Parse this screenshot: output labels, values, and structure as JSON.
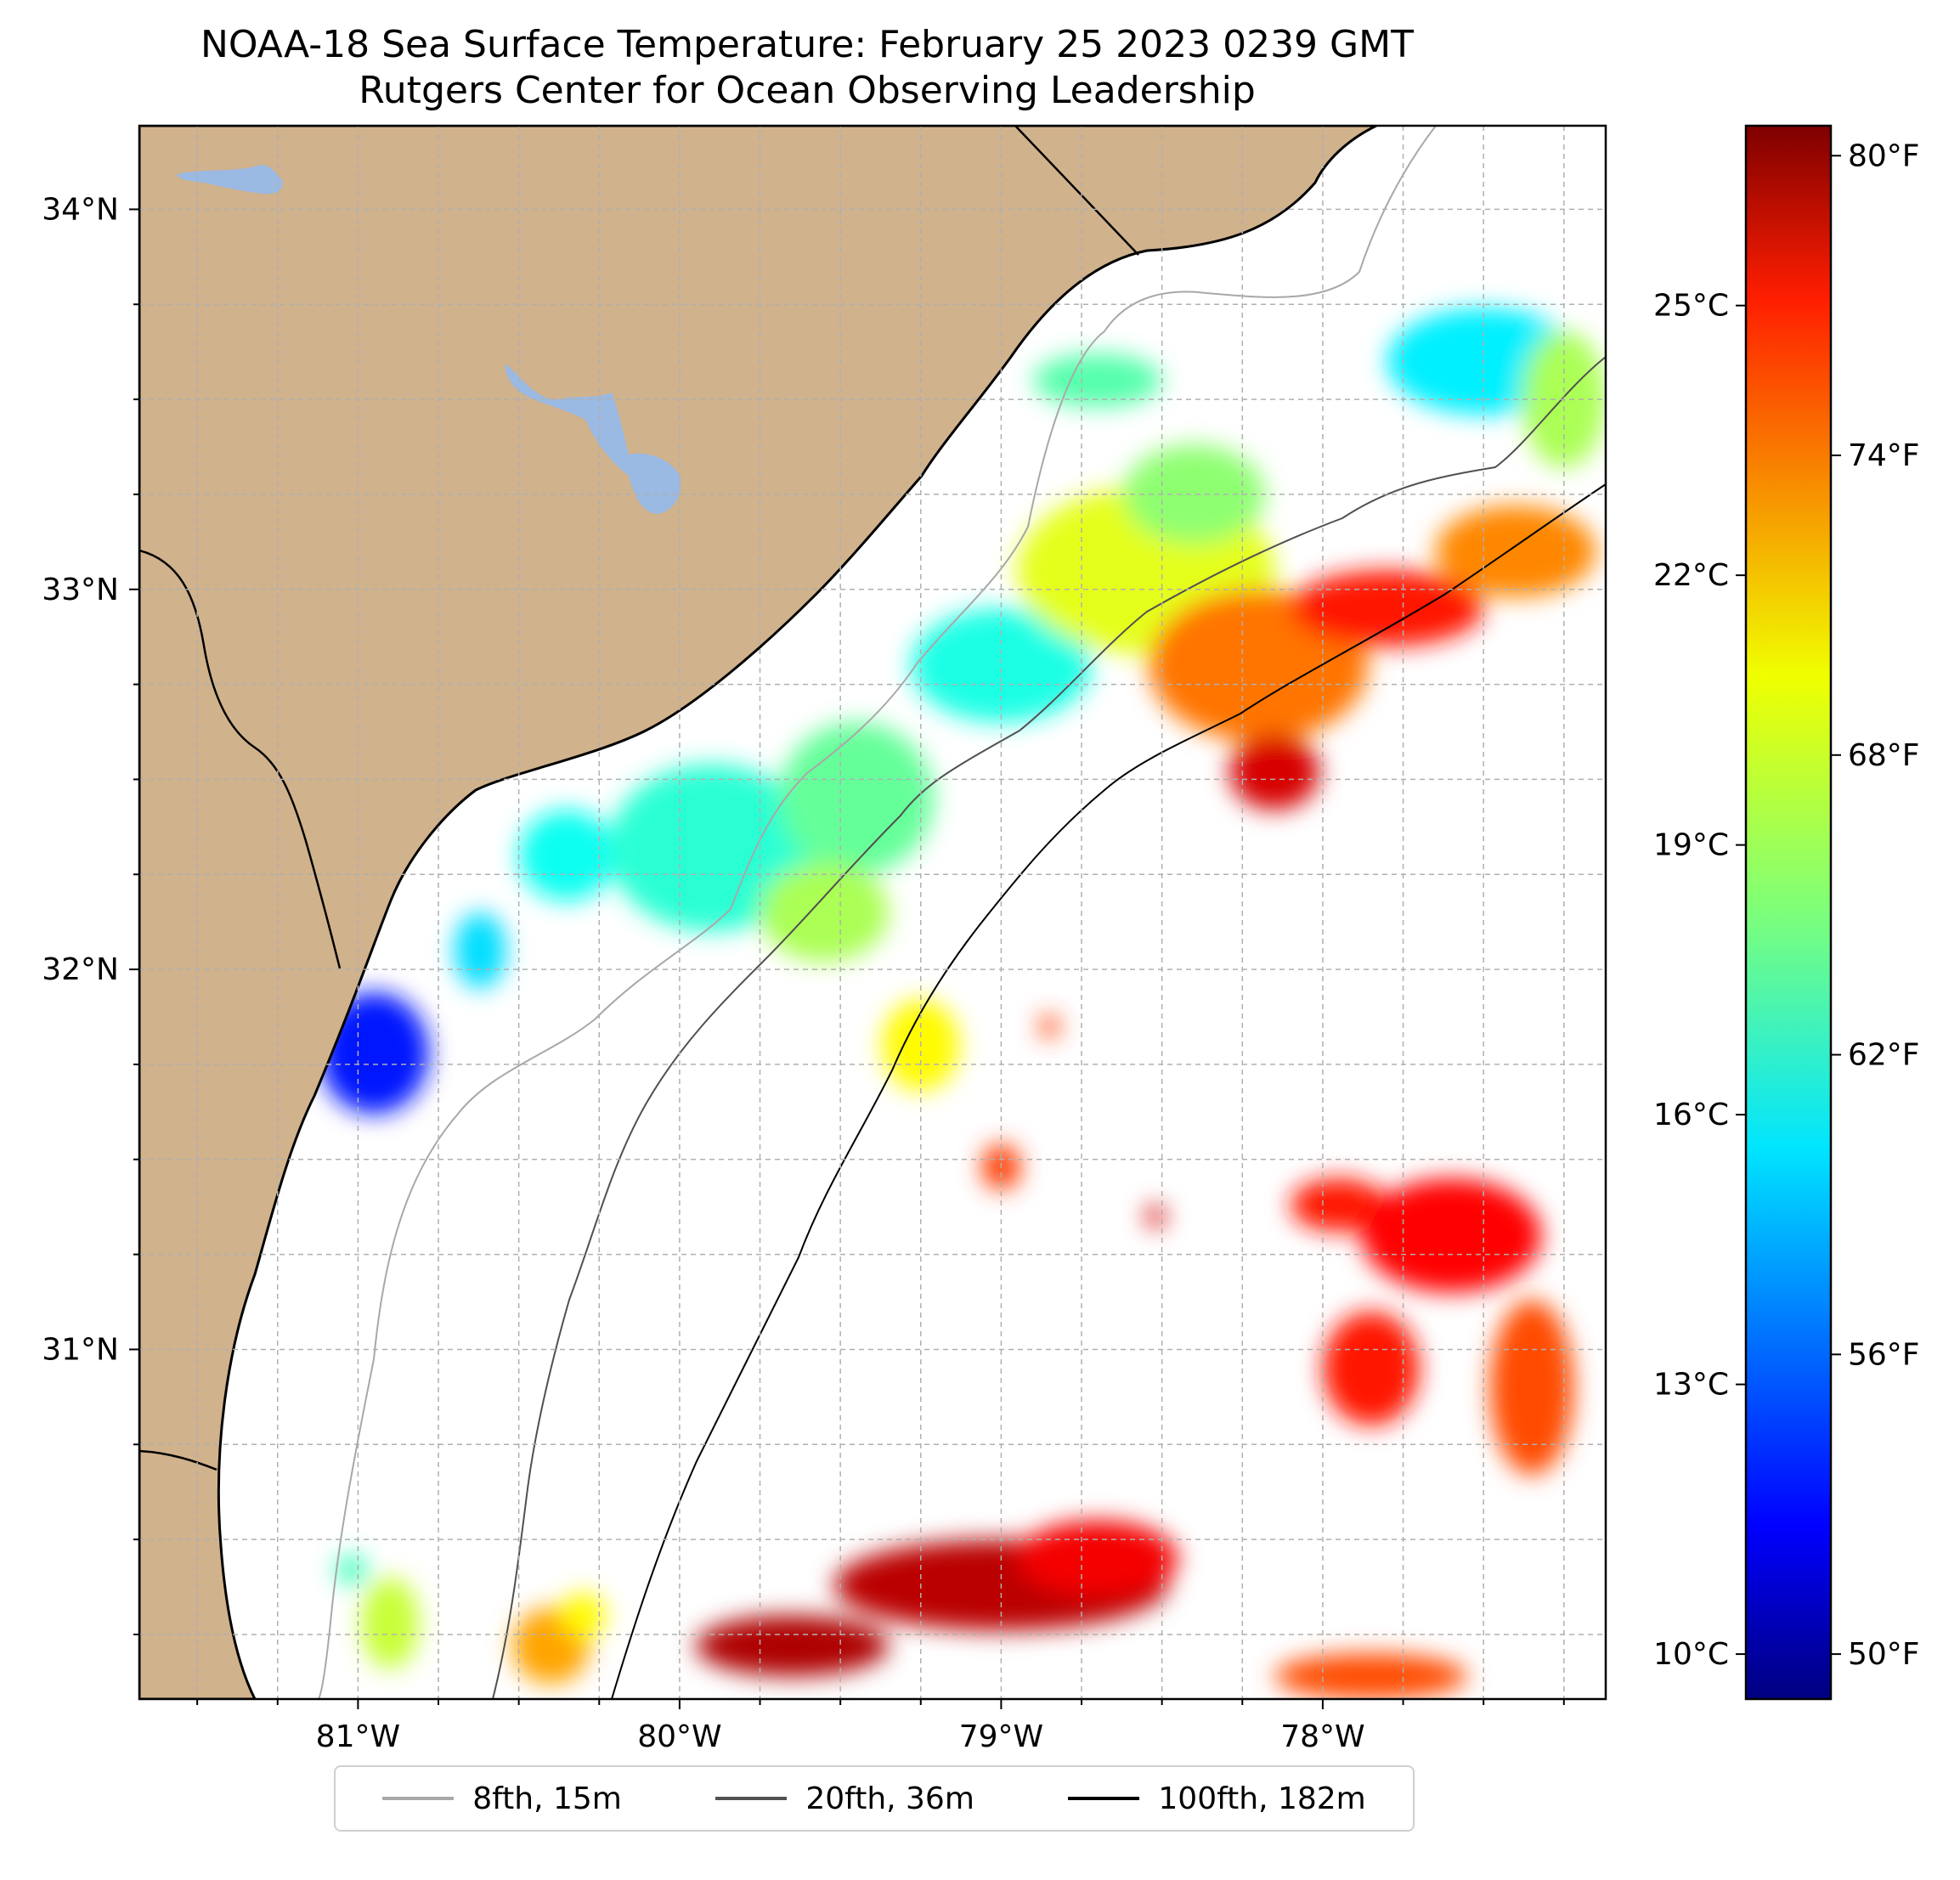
{
  "title_line1": "NOAA-18 Sea Surface Temperature: February 25 2023 0239 GMT",
  "title_line2": "Rutgers Center for Ocean Observing Leadership",
  "colors": {
    "land": "#d0b28c",
    "lake": "#9ab9e3",
    "coast": "#000000",
    "contour_8fth": "#a8a8a8",
    "contour_20fth": "#505050",
    "contour_100fth": "#000000",
    "grid": "#b0b0b0"
  },
  "map": {
    "lon_range": [
      -81.68,
      -77.12
    ],
    "lat_range": [
      30.08,
      34.22
    ],
    "lat_ticks": [
      {
        "value": 34,
        "label": "34°N"
      },
      {
        "value": 33,
        "label": "33°N"
      },
      {
        "value": 32,
        "label": "32°N"
      },
      {
        "value": 31,
        "label": "31°N"
      }
    ],
    "lon_ticks": [
      {
        "value": -81,
        "label": "81°W"
      },
      {
        "value": -80,
        "label": "80°W"
      },
      {
        "value": -79,
        "label": "79°W"
      },
      {
        "value": -78,
        "label": "78°W"
      }
    ]
  },
  "colorbar": {
    "colormap": "jet",
    "range_c": [
      9.5,
      27.0
    ],
    "celsius_ticks": [
      {
        "value": 25,
        "label": "25°C"
      },
      {
        "value": 22,
        "label": "22°C"
      },
      {
        "value": 19,
        "label": "19°C"
      },
      {
        "value": 16,
        "label": "16°C"
      },
      {
        "value": 13,
        "label": "13°C"
      },
      {
        "value": 10,
        "label": "10°C"
      }
    ],
    "fahrenheit_ticks": [
      {
        "value": 80,
        "label": "80°F"
      },
      {
        "value": 74,
        "label": "74°F"
      },
      {
        "value": 68,
        "label": "68°F"
      },
      {
        "value": 62,
        "label": "62°F"
      },
      {
        "value": 56,
        "label": "56°F"
      },
      {
        "value": 50,
        "label": "50°F"
      }
    ]
  },
  "legend": [
    {
      "label": "8fth, 15m",
      "color": "#a8a8a8"
    },
    {
      "label": "20fth, 36m",
      "color": "#505050"
    },
    {
      "label": "100fth, 182m",
      "color": "#000000"
    }
  ],
  "sst_patches": [
    {
      "lon": -80.95,
      "lat": 31.78,
      "rx": 0.17,
      "ry": 0.16,
      "temp_c": 12.0
    },
    {
      "lon": -80.62,
      "lat": 32.05,
      "rx": 0.08,
      "ry": 0.1,
      "temp_c": 15.5
    },
    {
      "lon": -80.35,
      "lat": 32.3,
      "rx": 0.15,
      "ry": 0.12,
      "temp_c": 16.3
    },
    {
      "lon": -79.9,
      "lat": 32.32,
      "rx": 0.32,
      "ry": 0.22,
      "temp_c": 16.8
    },
    {
      "lon": -79.45,
      "lat": 32.45,
      "rx": 0.24,
      "ry": 0.2,
      "temp_c": 17.8
    },
    {
      "lon": -79.55,
      "lat": 32.15,
      "rx": 0.2,
      "ry": 0.13,
      "temp_c": 19.0
    },
    {
      "lon": -79.0,
      "lat": 32.8,
      "rx": 0.28,
      "ry": 0.15,
      "temp_c": 16.5
    },
    {
      "lon": -78.55,
      "lat": 33.05,
      "rx": 0.4,
      "ry": 0.22,
      "temp_c": 20.0
    },
    {
      "lon": -78.4,
      "lat": 33.25,
      "rx": 0.22,
      "ry": 0.13,
      "temp_c": 18.5
    },
    {
      "lon": -78.2,
      "lat": 32.8,
      "rx": 0.34,
      "ry": 0.2,
      "temp_c": 22.8
    },
    {
      "lon": -77.8,
      "lat": 32.95,
      "rx": 0.3,
      "ry": 0.1,
      "temp_c": 24.5
    },
    {
      "lon": -77.4,
      "lat": 33.1,
      "rx": 0.25,
      "ry": 0.12,
      "temp_c": 22.5
    },
    {
      "lon": -78.15,
      "lat": 32.52,
      "rx": 0.14,
      "ry": 0.1,
      "temp_c": 25.5
    },
    {
      "lon": -78.7,
      "lat": 33.55,
      "rx": 0.2,
      "ry": 0.07,
      "temp_c": 17.5
    },
    {
      "lon": -77.5,
      "lat": 33.6,
      "rx": 0.3,
      "ry": 0.14,
      "temp_c": 15.8
    },
    {
      "lon": -77.25,
      "lat": 33.5,
      "rx": 0.13,
      "ry": 0.18,
      "temp_c": 19.0
    },
    {
      "lon": -79.25,
      "lat": 31.8,
      "rx": 0.12,
      "ry": 0.12,
      "temp_c": 20.5
    },
    {
      "lon": -79.0,
      "lat": 31.48,
      "rx": 0.06,
      "ry": 0.06,
      "temp_c": 23.8
    },
    {
      "lon": -78.85,
      "lat": 31.85,
      "rx": 0.03,
      "ry": 0.03,
      "temp_c": 23.8
    },
    {
      "lon": -78.52,
      "lat": 31.35,
      "rx": 0.03,
      "ry": 0.03,
      "temp_c": 25.5
    },
    {
      "lon": -77.95,
      "lat": 31.38,
      "rx": 0.15,
      "ry": 0.07,
      "temp_c": 24.5
    },
    {
      "lon": -77.6,
      "lat": 31.3,
      "rx": 0.28,
      "ry": 0.15,
      "temp_c": 24.8
    },
    {
      "lon": -77.35,
      "lat": 30.9,
      "rx": 0.13,
      "ry": 0.23,
      "temp_c": 23.5
    },
    {
      "lon": -77.85,
      "lat": 30.95,
      "rx": 0.15,
      "ry": 0.15,
      "temp_c": 24.5
    },
    {
      "lon": -79.0,
      "lat": 30.38,
      "rx": 0.52,
      "ry": 0.12,
      "temp_c": 26.0
    },
    {
      "lon": -79.65,
      "lat": 30.22,
      "rx": 0.3,
      "ry": 0.08,
      "temp_c": 26.2
    },
    {
      "lon": -78.7,
      "lat": 30.45,
      "rx": 0.25,
      "ry": 0.1,
      "temp_c": 25.0
    },
    {
      "lon": -77.85,
      "lat": 30.14,
      "rx": 0.3,
      "ry": 0.06,
      "temp_c": 23.5
    },
    {
      "lon": -80.9,
      "lat": 30.28,
      "rx": 0.09,
      "ry": 0.12,
      "temp_c": 19.5
    },
    {
      "lon": -80.4,
      "lat": 30.22,
      "rx": 0.12,
      "ry": 0.1,
      "temp_c": 22.0
    },
    {
      "lon": -80.3,
      "lat": 30.3,
      "rx": 0.07,
      "ry": 0.06,
      "temp_c": 20.5
    },
    {
      "lon": -81.02,
      "lat": 30.42,
      "rx": 0.05,
      "ry": 0.04,
      "temp_c": 17.2
    }
  ]
}
